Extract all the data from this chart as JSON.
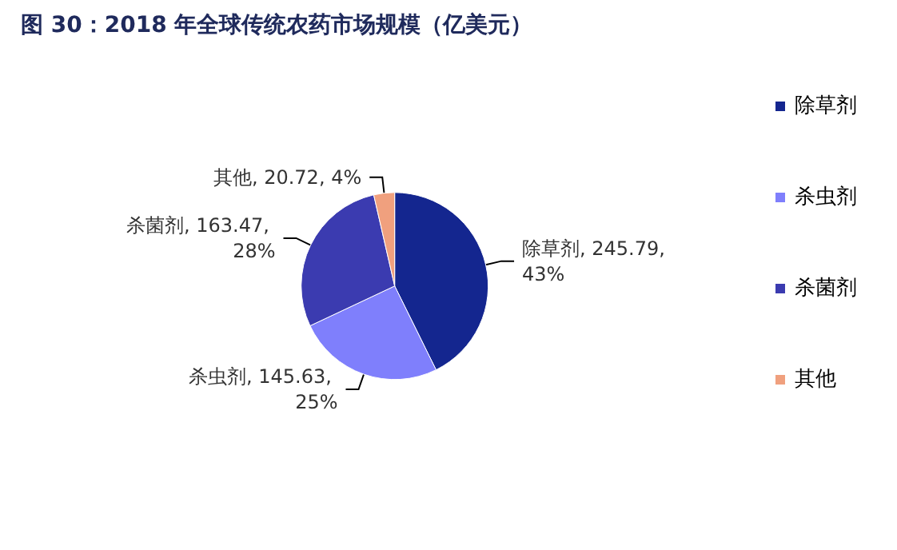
{
  "chart_data": {
    "type": "pie",
    "title": "图 30：2018 年全球传统农药市场规模（亿美元）",
    "categories": [
      "除草剂",
      "杀虫剂",
      "杀菌剂",
      "其他"
    ],
    "values": [
      245.79,
      145.63,
      163.47,
      20.72
    ],
    "colors": [
      "#14268f",
      "#7f7ffc",
      "#3b3bb0",
      "#f0a07e"
    ],
    "value_labels": [
      "除草剂, 245.79, 43%",
      "杀虫剂, 145.63, 25%",
      "杀菌剂, 163.47, 28%",
      "其他, 20.72, 4%"
    ],
    "legend": "right"
  }
}
